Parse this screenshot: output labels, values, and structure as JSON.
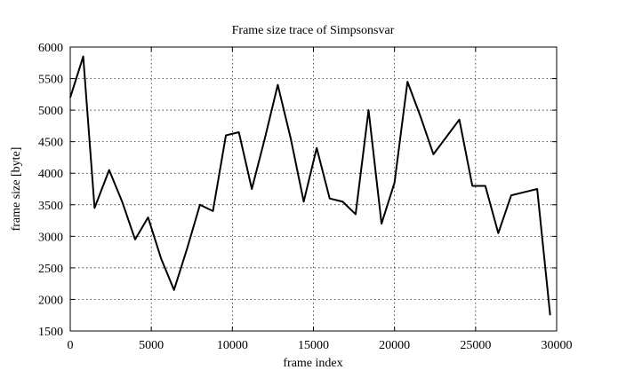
{
  "chart_data": {
    "type": "line",
    "title": "Frame size trace of Simpsonsvar",
    "x_label": "frame index",
    "y_label": "frame size [byte]",
    "x": [
      0,
      800,
      1500,
      2400,
      3200,
      4000,
      4800,
      5600,
      6400,
      7200,
      8000,
      8800,
      9600,
      10400,
      11200,
      12000,
      12800,
      13600,
      14400,
      15200,
      16000,
      16800,
      17600,
      18400,
      19200,
      20000,
      20800,
      21600,
      22400,
      24000,
      24800,
      25600,
      26400,
      27200,
      28000,
      28800,
      29600
    ],
    "series": [
      {
        "name": "Simpsonsvar",
        "color": "#000000",
        "values": [
          5200,
          5850,
          3450,
          4050,
          3550,
          2950,
          3300,
          2650,
          2150,
          2800,
          3500,
          3400,
          4600,
          4650,
          3750,
          4550,
          5400,
          4550,
          3550,
          4400,
          3600,
          3550,
          3350,
          5000,
          3200,
          3850,
          5450,
          4900,
          4300,
          4850,
          3800,
          3800,
          3050,
          3650,
          3700,
          3750,
          1750
        ]
      }
    ],
    "xlim": [
      0,
      30000
    ],
    "xticks": [
      0,
      5000,
      10000,
      15000,
      20000,
      25000,
      30000
    ],
    "ylim": [
      1500,
      6000
    ],
    "yticks": [
      1500,
      2000,
      2500,
      3000,
      3500,
      4000,
      4500,
      5000,
      5500,
      6000
    ],
    "grid": true
  }
}
